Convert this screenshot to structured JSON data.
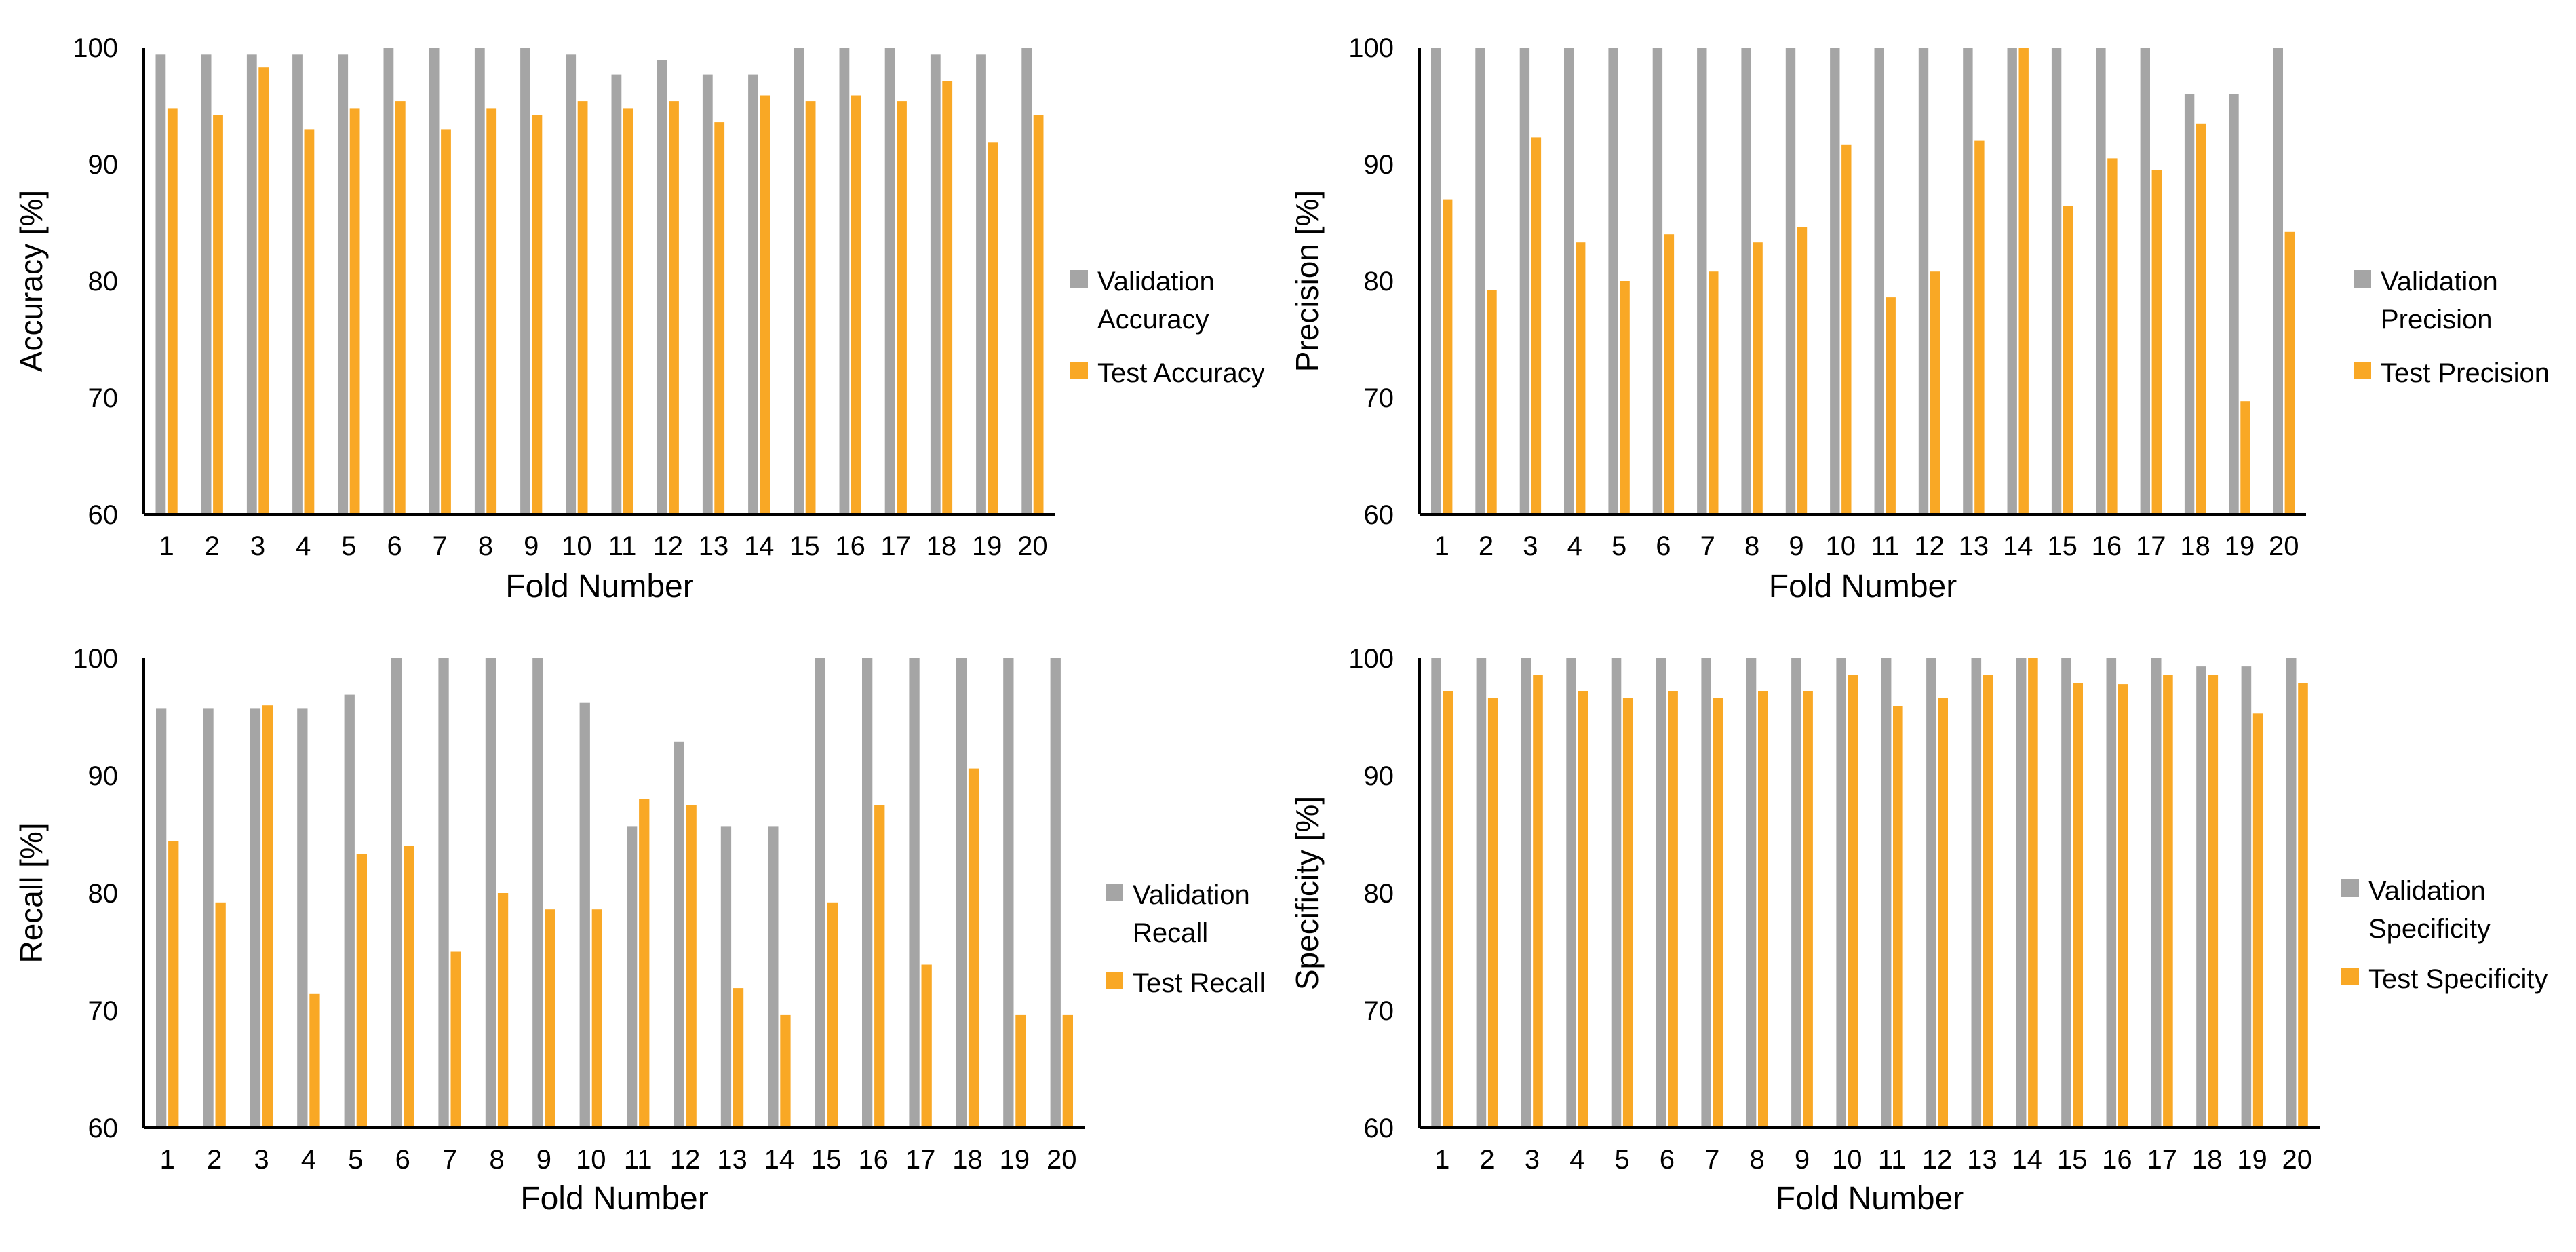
{
  "colors": {
    "validation": "#A5A5A5",
    "test": "#F9A825",
    "axis": "#000000",
    "text": "#000000"
  },
  "chart_data": [
    {
      "type": "bar",
      "title": "",
      "xlabel": "Fold Number",
      "ylabel": "Accuracy [%]",
      "ylim": [
        60,
        100
      ],
      "yticks": [
        "60",
        "70",
        "80",
        "90",
        "100"
      ],
      "grid": false,
      "legend_position": "right",
      "categories": [
        "1",
        "2",
        "3",
        "4",
        "5",
        "6",
        "7",
        "8",
        "9",
        "10",
        "11",
        "12",
        "13",
        "14",
        "15",
        "16",
        "17",
        "18",
        "19",
        "20"
      ],
      "series": [
        {
          "name": "Validation Accuracy",
          "legend_lines": [
            "Validation",
            "Accuracy"
          ],
          "values": [
            99.4,
            99.4,
            99.4,
            99.4,
            99.4,
            100,
            100,
            100,
            100,
            99.4,
            97.7,
            98.9,
            97.7,
            97.7,
            100,
            100,
            100,
            99.4,
            99.4,
            100
          ]
        },
        {
          "name": "Test Accuracy",
          "legend_lines": [
            "Test Accuracy"
          ],
          "values": [
            94.8,
            94.2,
            98.3,
            93.0,
            94.8,
            95.4,
            93.0,
            94.8,
            94.2,
            95.4,
            94.8,
            95.4,
            93.6,
            95.9,
            95.4,
            95.9,
            95.4,
            97.1,
            91.9,
            94.2
          ]
        }
      ]
    },
    {
      "type": "bar",
      "title": "",
      "xlabel": "Fold Number",
      "ylabel": "Precision [%]",
      "ylim": [
        60,
        100
      ],
      "yticks": [
        "60",
        "70",
        "80",
        "90",
        "100"
      ],
      "grid": false,
      "legend_position": "right",
      "categories": [
        "1",
        "2",
        "3",
        "4",
        "5",
        "6",
        "7",
        "8",
        "9",
        "10",
        "11",
        "12",
        "13",
        "14",
        "15",
        "16",
        "17",
        "18",
        "19",
        "20"
      ],
      "series": [
        {
          "name": "Validation Precision",
          "legend_lines": [
            "Validation",
            "Precision"
          ],
          "values": [
            100,
            100,
            100,
            100,
            100,
            100,
            100,
            100,
            100,
            100,
            100,
            100,
            100,
            100,
            100,
            100,
            100,
            96.0,
            96.0,
            100
          ]
        },
        {
          "name": "Test Precision",
          "legend_lines": [
            "Test Precision"
          ],
          "values": [
            87.0,
            79.2,
            92.3,
            83.3,
            80.0,
            84.0,
            80.8,
            83.3,
            84.6,
            91.7,
            78.6,
            80.8,
            92.0,
            100,
            86.4,
            90.5,
            89.5,
            93.5,
            69.7,
            84.2
          ]
        }
      ]
    },
    {
      "type": "bar",
      "title": "",
      "xlabel": "Fold Number",
      "ylabel": "Recall [%]",
      "ylim": [
        60,
        100
      ],
      "yticks": [
        "60",
        "70",
        "80",
        "90",
        "100"
      ],
      "grid": false,
      "legend_position": "right",
      "categories": [
        "1",
        "2",
        "3",
        "4",
        "5",
        "6",
        "7",
        "8",
        "9",
        "10",
        "11",
        "12",
        "13",
        "14",
        "15",
        "16",
        "17",
        "18",
        "19",
        "20"
      ],
      "series": [
        {
          "name": "Validation Recall",
          "legend_lines": [
            "Validation",
            "Recall"
          ],
          "values": [
            95.7,
            95.7,
            95.7,
            95.7,
            96.9,
            100,
            100,
            100,
            100,
            96.2,
            85.7,
            92.9,
            85.7,
            85.7,
            100,
            100,
            100,
            100,
            100,
            100
          ]
        },
        {
          "name": "Test Recall",
          "legend_lines": [
            "Test Recall"
          ],
          "values": [
            84.4,
            79.2,
            96.0,
            71.4,
            83.3,
            84.0,
            75.0,
            80.0,
            78.6,
            78.6,
            88.0,
            87.5,
            71.9,
            69.6,
            79.2,
            87.5,
            73.9,
            90.6,
            69.6,
            69.6
          ]
        }
      ]
    },
    {
      "type": "bar",
      "title": "",
      "xlabel": "Fold Number",
      "ylabel": "Specificity [%]",
      "ylim": [
        60,
        100
      ],
      "yticks": [
        "60",
        "70",
        "80",
        "90",
        "100"
      ],
      "grid": false,
      "legend_position": "right",
      "categories": [
        "1",
        "2",
        "3",
        "4",
        "5",
        "6",
        "7",
        "8",
        "9",
        "10",
        "11",
        "12",
        "13",
        "14",
        "15",
        "16",
        "17",
        "18",
        "19",
        "20"
      ],
      "series": [
        {
          "name": "Validation Specificity",
          "legend_lines": [
            "Validation",
            "Specificity"
          ],
          "values": [
            100,
            100,
            100,
            100,
            100,
            100,
            100,
            100,
            100,
            100,
            100,
            100,
            100,
            100,
            100,
            100,
            100,
            99.3,
            99.3,
            100
          ]
        },
        {
          "name": "Test Specificity",
          "legend_lines": [
            "Test Specificity"
          ],
          "values": [
            97.2,
            96.6,
            98.6,
            97.2,
            96.6,
            97.2,
            96.6,
            97.2,
            97.2,
            98.6,
            95.9,
            96.6,
            98.6,
            100,
            97.9,
            97.8,
            98.6,
            98.6,
            95.3,
            97.9
          ]
        }
      ]
    }
  ]
}
